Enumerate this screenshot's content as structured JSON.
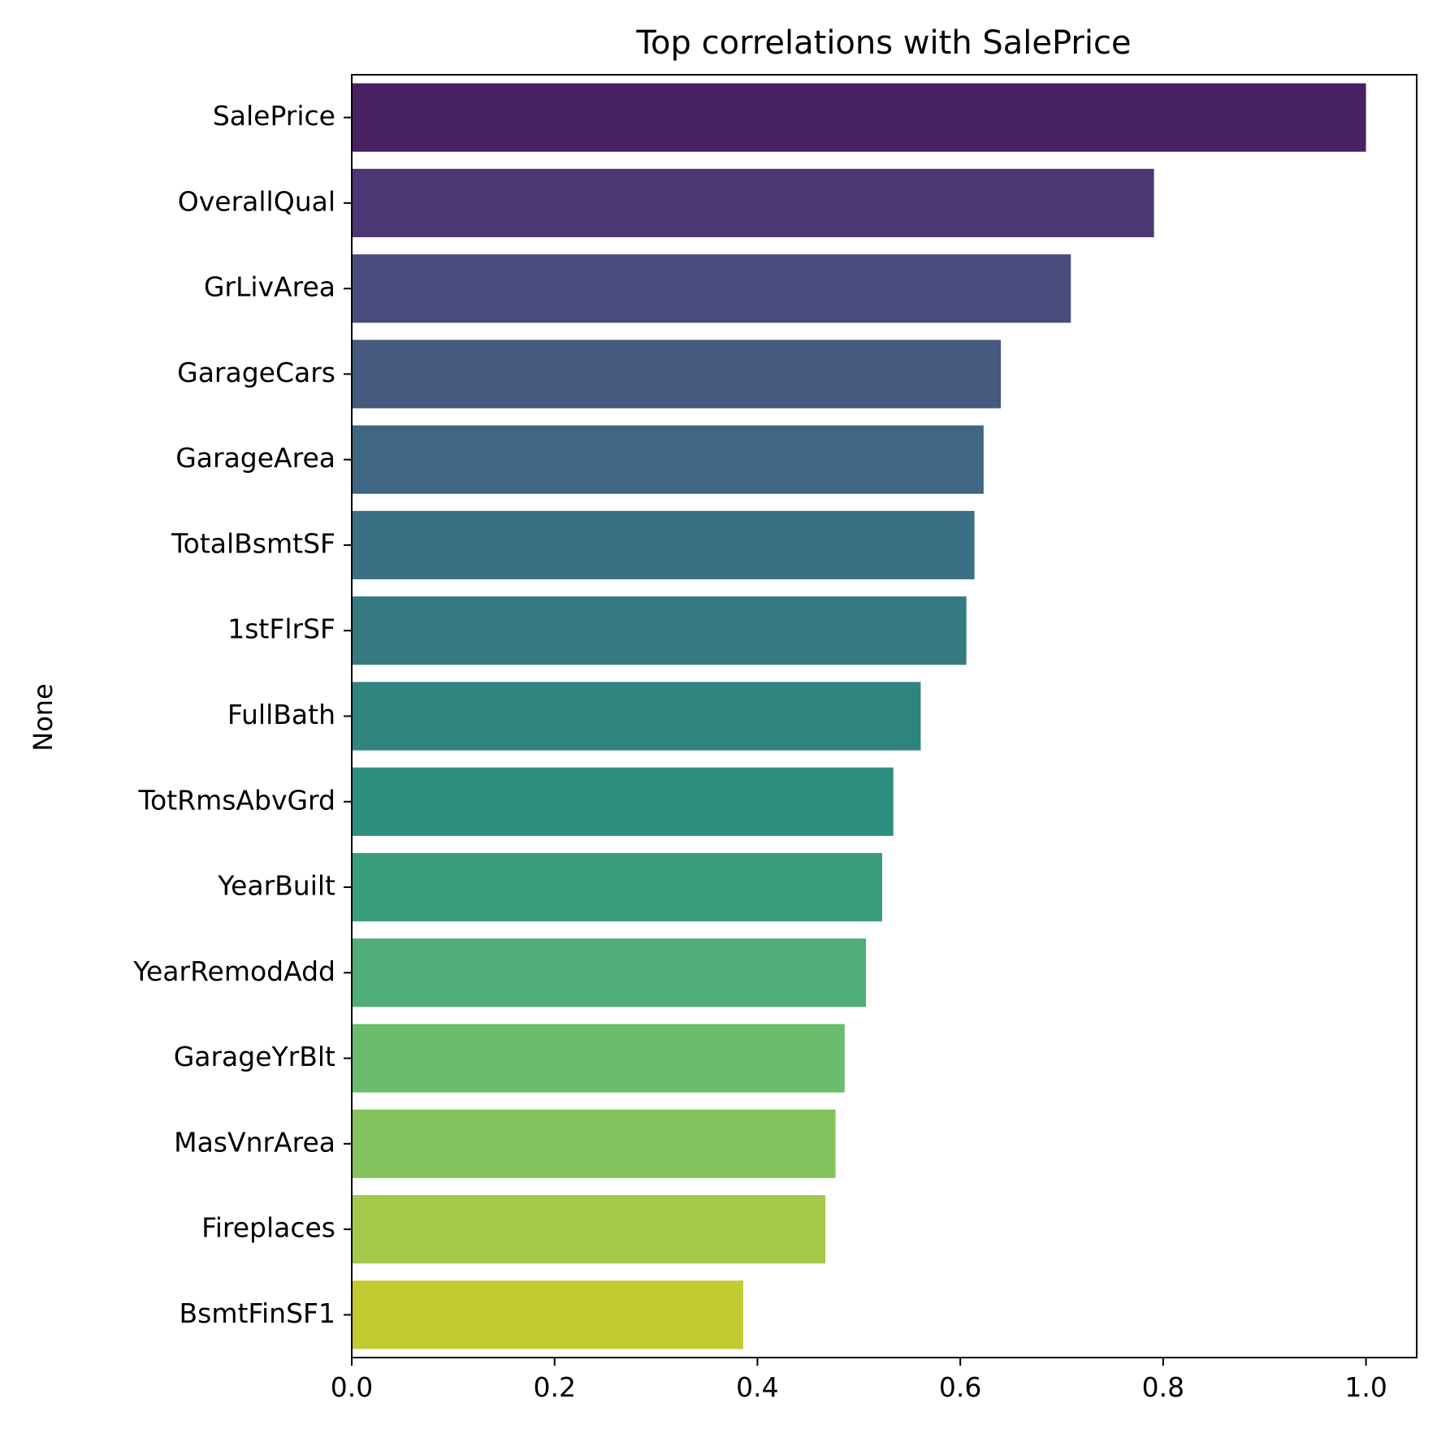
{
  "chart_data": {
    "type": "bar",
    "orientation": "horizontal",
    "title": "Top correlations with SalePrice",
    "xlabel": "",
    "ylabel": "None",
    "categories": [
      "SalePrice",
      "OverallQual",
      "GrLivArea",
      "GarageCars",
      "GarageArea",
      "TotalBsmtSF",
      "1stFlrSF",
      "FullBath",
      "TotRmsAbvGrd",
      "YearBuilt",
      "YearRemodAdd",
      "GarageYrBlt",
      "MasVnrArea",
      "Fireplaces",
      "BsmtFinSF1"
    ],
    "values": [
      1.0,
      0.791,
      0.709,
      0.64,
      0.623,
      0.614,
      0.606,
      0.561,
      0.534,
      0.523,
      0.507,
      0.486,
      0.477,
      0.467,
      0.386
    ],
    "colors": [
      "#482163",
      "#4a3773",
      "#494d7e",
      "#46597f",
      "#3f6683",
      "#3b7084",
      "#357a80",
      "#2f847e",
      "#2e8e7e",
      "#3a9d7b",
      "#4fad77",
      "#6bbc6c",
      "#84c25d",
      "#a3c84a",
      "#c2cc32"
    ],
    "xlim": [
      0,
      1.05
    ],
    "xticks": [
      "0.0",
      "0.2",
      "0.4",
      "0.6",
      "0.8",
      "1.0"
    ],
    "grid": false,
    "legend": "none"
  }
}
